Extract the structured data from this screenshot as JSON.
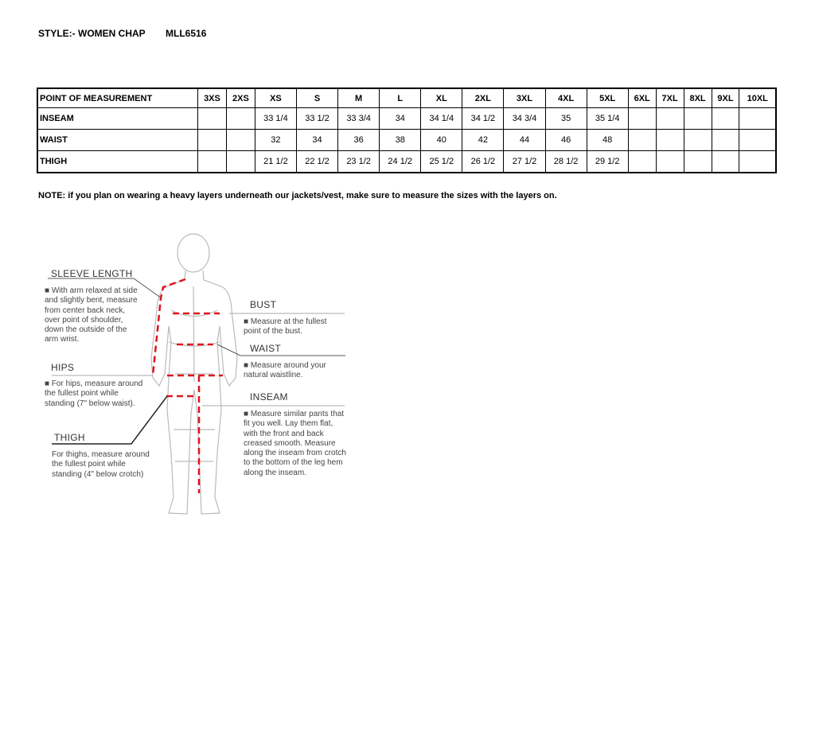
{
  "header": {
    "style_label": "STYLE:- WOMEN CHAP",
    "style_code": "MLL6516"
  },
  "table": {
    "columns": [
      "POINT OF MEASUREMENT",
      "3XS",
      "2XS",
      "XS",
      "S",
      "M",
      "L",
      "XL",
      "2XL",
      "3XL",
      "4XL",
      "5XL",
      "6XL",
      "7XL",
      "8XL",
      "9XL",
      "10XL"
    ],
    "rows": [
      [
        "INSEAM",
        "",
        "",
        "33 1/4",
        "33 1/2",
        "33 3/4",
        "34",
        "34 1/4",
        "34 1/2",
        "34 3/4",
        "35",
        "35 1/4",
        "",
        "",
        "",
        "",
        ""
      ],
      [
        "WAIST",
        "",
        "",
        "32",
        "34",
        "36",
        "38",
        "40",
        "42",
        "44",
        "46",
        "48",
        "",
        "",
        "",
        "",
        ""
      ],
      [
        "THIGH",
        "",
        "",
        "21 1/2",
        "22 1/2",
        "23 1/2",
        "24 1/2",
        "25 1/2",
        "26 1/2",
        "27 1/2",
        "28 1/2",
        "29 1/2",
        "",
        "",
        "",
        "",
        ""
      ]
    ]
  },
  "note": "NOTE: if you plan on wearing a heavy layers underneath our jackets/vest, make sure to measure the sizes with the layers on.",
  "figure": {
    "accent_color": "#e0131f",
    "sleeve": {
      "title": "SLEEVE LENGTH",
      "text": "■ With arm relaxed at side and slightly bent, measure from center back neck, over point of shoulder, down the outside of the arm wrist."
    },
    "hips": {
      "title": "HIPS",
      "text": "■ For hips, measure around the fullest point while standing (7\" below waist)."
    },
    "thigh": {
      "title": "THIGH",
      "text": "For thighs, measure around the fullest point while standing (4\" below crotch)"
    },
    "bust": {
      "title": "BUST",
      "text": "■ Measure at the fullest point of the bust."
    },
    "waist": {
      "title": "WAIST",
      "text": "■ Measure around your natural waistline."
    },
    "inseam": {
      "title": "INSEAM",
      "text": "■ Measure similar pants that fit you well. Lay them flat, with the front and back creased smooth. Measure along the inseam from crotch to the bottom of the leg hem along the inseam."
    }
  }
}
